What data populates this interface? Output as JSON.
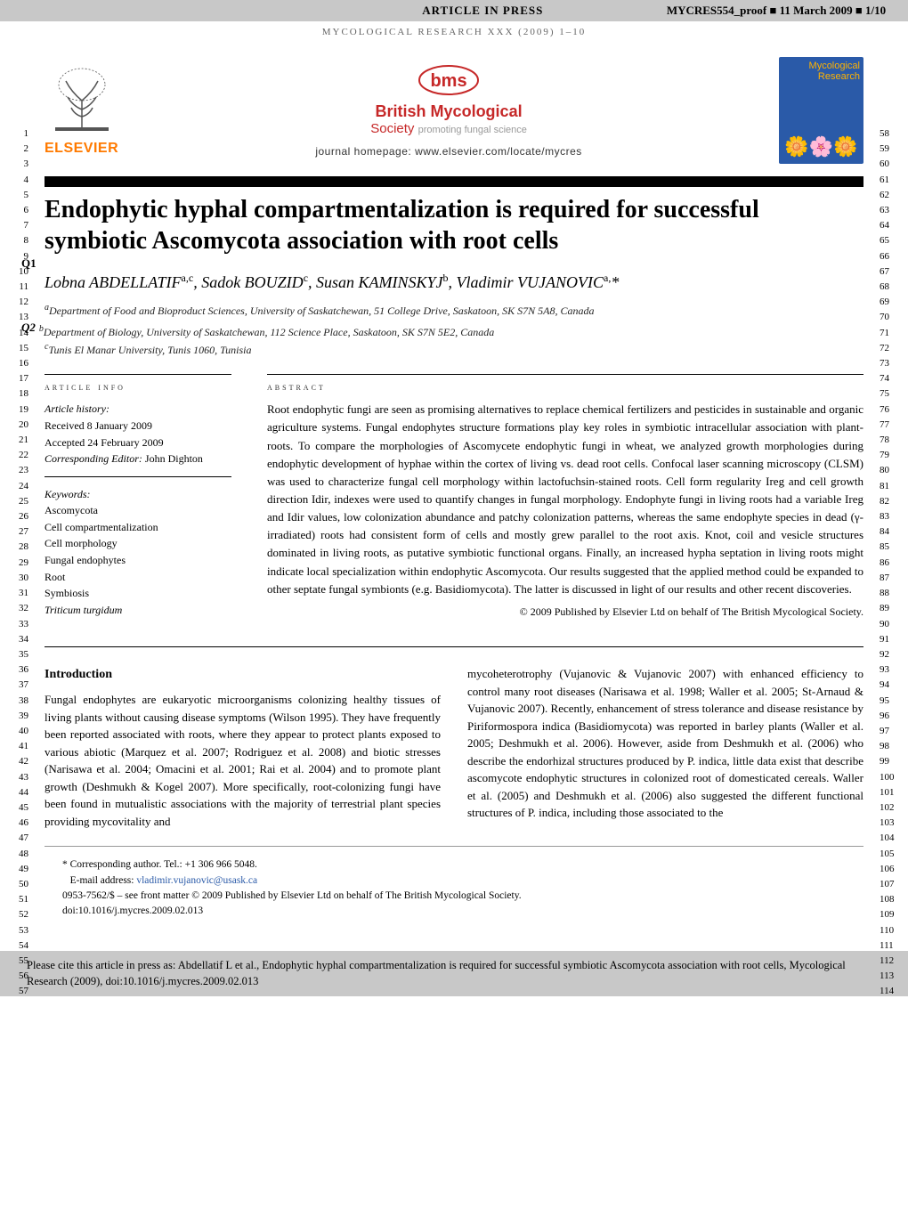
{
  "header_strip": {
    "article_in_press": "ARTICLE IN PRESS",
    "proof_info": "MYCRES554_proof ■ 11 March 2009 ■ 1/10"
  },
  "running_head": "MYCOLOGICAL RESEARCH XXX (2009) 1–10",
  "publisher": {
    "name": "ELSEVIER"
  },
  "society": {
    "logo": "bms",
    "title": "British Mycological",
    "subtitle": "Society",
    "tagline": "promoting fungal science",
    "homepage_label": "journal homepage:",
    "homepage_url": "www.elsevier.com/locate/mycres"
  },
  "cover": {
    "journal_name_1": "Mycological",
    "journal_name_2": "Research"
  },
  "queries": {
    "q1": "Q1",
    "q2": "Q2"
  },
  "title": "Endophytic hyphal compartmentalization is required for successful symbiotic Ascomycota association with root cells",
  "authors_html": "Lobna ABDELLATIF<sup>a,c</sup>, Sadok BOUZID<sup>c</sup>, Susan KAMINSKYJ<sup>b</sup>, Vladimir VUJANOVIC<sup>a,</sup>*",
  "affiliations": {
    "a": "Department of Food and Bioproduct Sciences, University of Saskatchewan, 51 College Drive, Saskatoon, SK S7N 5A8, Canada",
    "b": "Department of Biology, University of Saskatchewan, 112 Science Place, Saskatoon, SK S7N 5E2, Canada",
    "c": "Tunis El Manar University, Tunis 1060, Tunisia"
  },
  "article_info": {
    "heading": "article info",
    "history_label": "Article history:",
    "received": "Received 8 January 2009",
    "accepted": "Accepted 24 February 2009",
    "editor_label": "Corresponding Editor:",
    "editor_name": "John Dighton",
    "keywords_label": "Keywords:",
    "keywords": [
      "Ascomycota",
      "Cell compartmentalization",
      "Cell morphology",
      "Fungal endophytes",
      "Root",
      "Symbiosis",
      "Triticum turgidum"
    ]
  },
  "abstract": {
    "heading": "abstract",
    "body": "Root endophytic fungi are seen as promising alternatives to replace chemical fertilizers and pesticides in sustainable and organic agriculture systems. Fungal endophytes structure formations play key roles in symbiotic intracellular association with plant-roots. To compare the morphologies of Ascomycete endophytic fungi in wheat, we analyzed growth morphologies during endophytic development of hyphae within the cortex of living vs. dead root cells. Confocal laser scanning microscopy (CLSM) was used to characterize fungal cell morphology within lactofuchsin-stained roots. Cell form regularity Ireg and cell growth direction Idir, indexes were used to quantify changes in fungal morphology. Endophyte fungi in living roots had a variable Ireg and Idir values, low colonization abundance and patchy colonization patterns, whereas the same endophyte species in dead (γ-irradiated) roots had consistent form of cells and mostly grew parallel to the root axis. Knot, coil and vesicle structures dominated in living roots, as putative symbiotic functional organs. Finally, an increased hypha septation in living roots might indicate local specialization within endophytic Ascomycota. Our results suggested that the applied method could be expanded to other septate fungal symbionts (e.g. Basidiomycota). The latter is discussed in light of our results and other recent discoveries.",
    "copyright": "© 2009 Published by Elsevier Ltd on behalf of The British Mycological Society."
  },
  "introduction": {
    "heading": "Introduction",
    "col1": "Fungal endophytes are eukaryotic microorganisms colonizing healthy tissues of living plants without causing disease symptoms (Wilson 1995). They have frequently been reported associated with roots, where they appear to protect plants exposed to various abiotic (Marquez et al. 2007; Rodriguez et al. 2008) and biotic stresses (Narisawa et al. 2004; Omacini et al. 2001; Rai et al. 2004) and to promote plant growth (Deshmukh & Kogel 2007). More specifically, root-colonizing fungi have been found in mutualistic associations with the majority of terrestrial plant species providing mycovitality and",
    "col2": "mycoheterotrophy (Vujanovic & Vujanovic 2007) with enhanced efficiency to control many root diseases (Narisawa et al. 1998; Waller et al. 2005; St-Arnaud & Vujanovic 2007). Recently, enhancement of stress tolerance and disease resistance by Piriformospora indica (Basidiomycota) was reported in barley plants (Waller et al. 2005; Deshmukh et al. 2006). However, aside from Deshmukh et al. (2006) who describe the endorhizal structures produced by P. indica, little data exist that describe ascomycote endophytic structures in colonized root of domesticated cereals. Waller et al. (2005) and Deshmukh et al. (2006) also suggested the different functional structures of P. indica, including those associated to the"
  },
  "footnotes": {
    "corresponding": "* Corresponding author. Tel.: +1 306 966 5048.",
    "email_label": "E-mail address:",
    "email": "vladimir.vujanovic@usask.ca",
    "issn_line": "0953-7562/$ – see front matter © 2009 Published by Elsevier Ltd on behalf of The British Mycological Society.",
    "doi": "doi:10.1016/j.mycres.2009.02.013"
  },
  "cite_box": "Please cite this article in press as: Abdellatif L et al., Endophytic hyphal compartmentalization is required for successful symbiotic Ascomycota association with root cells, Mycological Research (2009), doi:10.1016/j.mycres.2009.02.013",
  "line_numbers": {
    "left_start": 1,
    "left_end": 57,
    "right_start": 58,
    "right_end": 114
  },
  "colors": {
    "header_strip_bg": "#c8c8c8",
    "elsevier_orange": "#ff7a00",
    "bms_red": "#c62828",
    "cover_blue": "#2a5aa8",
    "cover_gold": "#ffb300",
    "citation_link": "#2a5aa8"
  }
}
